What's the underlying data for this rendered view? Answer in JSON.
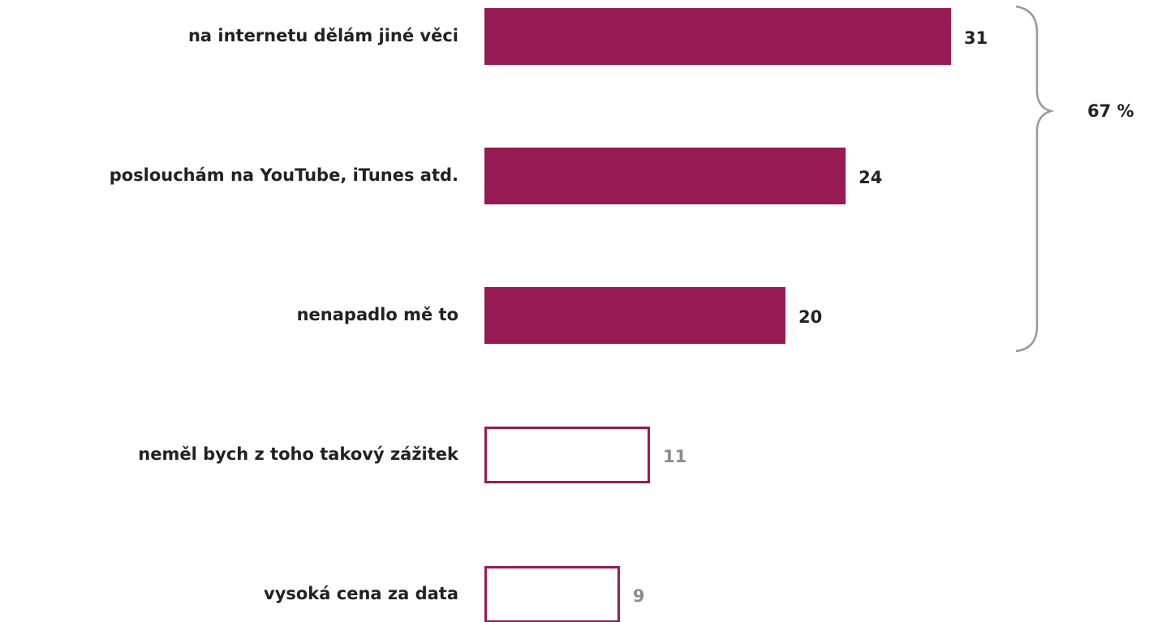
{
  "chart_data": {
    "type": "barh",
    "categories": [
      "na internetu dělám jiné věci",
      "poslouchám na YouTube, iTunes atd.",
      "nenapadlo mě to",
      "neměl bych z toho takový zážitek",
      "vysoká cena za data"
    ],
    "values": [
      31,
      24,
      20,
      11,
      9
    ],
    "filled": [
      true,
      true,
      true,
      false,
      false
    ],
    "color": "#961b52",
    "annotation": "67 %"
  }
}
